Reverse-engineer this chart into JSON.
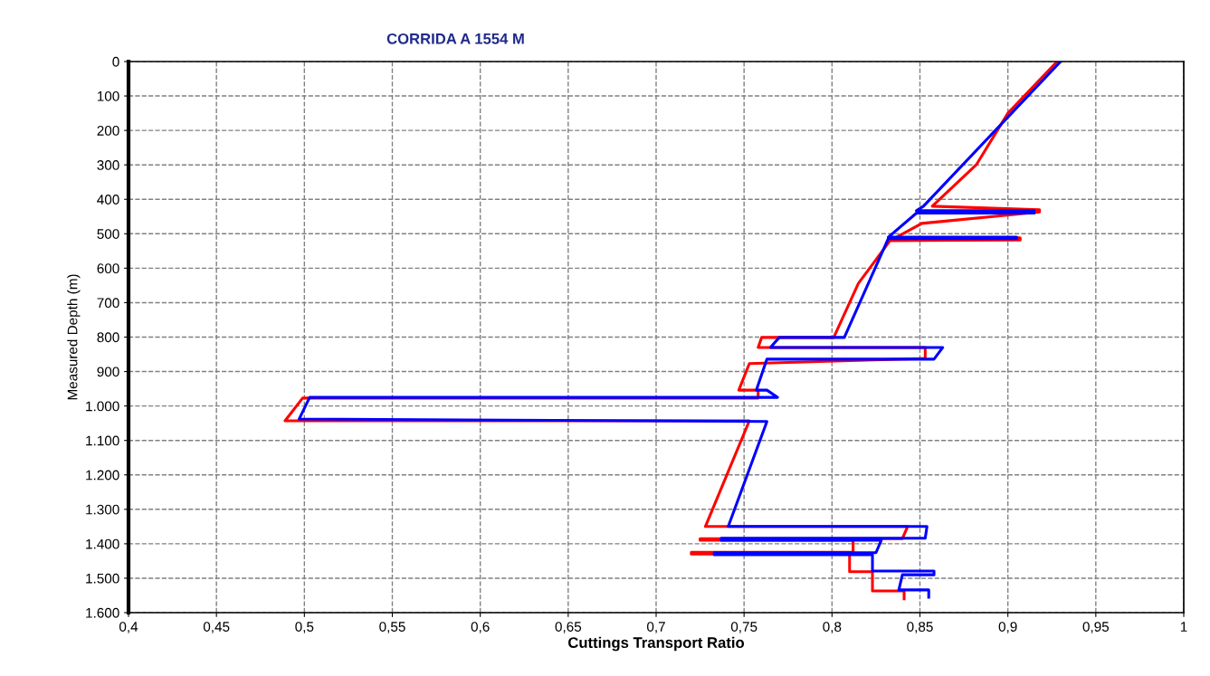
{
  "chart_data": {
    "type": "line",
    "title": "CORRIDA A 1554 M",
    "xlabel": "Cuttings Transport Ratio",
    "ylabel": "Measured Depth (m)",
    "series": [
      {
        "color": "#ff0000",
        "x": [
          0.928,
          0.9,
          0.882,
          0.857,
          0.918,
          0.918,
          0.851,
          0.836,
          0.907,
          0.907,
          0.833,
          0.822,
          0.815,
          0.801,
          0.76,
          0.758,
          0.853,
          0.853,
          0.753,
          0.747,
          0.758,
          0.758,
          0.499,
          0.489,
          0.753,
          0.728,
          0.843,
          0.84,
          0.725,
          0.725,
          0.812,
          0.812,
          0.72,
          0.72,
          0.81,
          0.81,
          0.823,
          0.823,
          0.841,
          0.841
        ],
        "values": [
          0,
          150,
          300,
          420,
          430,
          437,
          470,
          512,
          512,
          518,
          520,
          596,
          644,
          801,
          801,
          830,
          830,
          862,
          877,
          954,
          954,
          977,
          977,
          1043,
          1043,
          1350,
          1350,
          1385,
          1385,
          1390,
          1390,
          1425,
          1425,
          1430,
          1430,
          1481,
          1481,
          1537,
          1537,
          1560
        ]
      },
      {
        "color": "#0000ff",
        "x": [
          0.93,
          0.852,
          0.848,
          0.915,
          0.915,
          0.848,
          0.832,
          0.905,
          0.905,
          0.832,
          0.807,
          0.77,
          0.765,
          0.863,
          0.858,
          0.763,
          0.757,
          0.763,
          0.769,
          0.503,
          0.497,
          0.763,
          0.741,
          0.854,
          0.853,
          0.737,
          0.737,
          0.828,
          0.825,
          0.733,
          0.733,
          0.823,
          0.823,
          0.858,
          0.858,
          0.84,
          0.838,
          0.855,
          0.855
        ],
        "values": [
          0,
          420,
          433,
          433,
          440,
          440,
          510,
          510,
          514,
          514,
          801,
          801,
          830,
          830,
          864,
          864,
          954,
          954,
          975,
          975,
          1038,
          1045,
          1350,
          1350,
          1384,
          1384,
          1390,
          1390,
          1426,
          1426,
          1432,
          1432,
          1479,
          1479,
          1490,
          1490,
          1534,
          1534,
          1555
        ]
      }
    ],
    "xlim": [
      0.4,
      1
    ],
    "ylim": [
      1600,
      0
    ],
    "xticks": [
      {
        "value": 0.4,
        "label": "0,4"
      },
      {
        "value": 0.45,
        "label": "0,45"
      },
      {
        "value": 0.5,
        "label": "0,5"
      },
      {
        "value": 0.55,
        "label": "0,55"
      },
      {
        "value": 0.6,
        "label": "0,6"
      },
      {
        "value": 0.65,
        "label": "0,65"
      },
      {
        "value": 0.7,
        "label": "0,7"
      },
      {
        "value": 0.75,
        "label": "0,75"
      },
      {
        "value": 0.8,
        "label": "0,8"
      },
      {
        "value": 0.85,
        "label": "0,85"
      },
      {
        "value": 0.9,
        "label": "0,9"
      },
      {
        "value": 0.95,
        "label": "0,95"
      },
      1
    ],
    "yticks": [
      0,
      100,
      200,
      300,
      400,
      500,
      600,
      700,
      800,
      900,
      {
        "value": 1000,
        "label": "1.000"
      },
      {
        "value": 1100,
        "label": "1.100"
      },
      {
        "value": 1200,
        "label": "1.200"
      },
      {
        "value": 1300,
        "label": "1.300"
      },
      {
        "value": 1400,
        "label": "1.400"
      },
      {
        "value": 1500,
        "label": "1.500"
      },
      {
        "value": 1600,
        "label": "1.600"
      }
    ],
    "grid": true,
    "marker": "none",
    "line_style": "solid"
  }
}
